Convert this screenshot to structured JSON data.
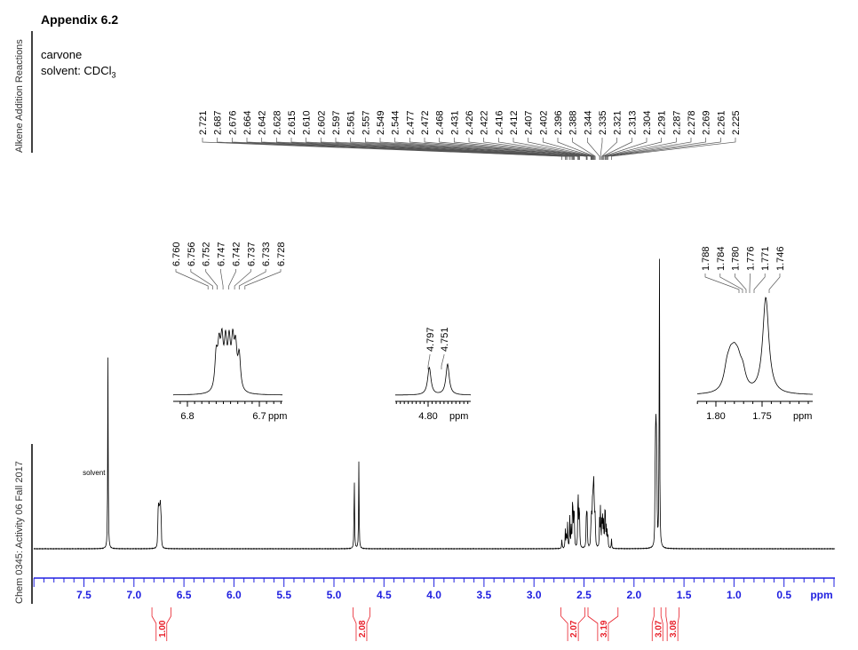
{
  "header": {
    "title": "Appendix 6.2",
    "compound": "carvone",
    "solvent_prefix": "solvent: CDCl",
    "solvent_subscript": "3",
    "side_label_top": "Alkene Addition Reactions",
    "side_label_bottom": "Chem 0345: Activity 06 Fall 2017"
  },
  "chart_data": {
    "type": "line",
    "title": "",
    "xlabel": "ppm",
    "xlim": [
      8.0,
      0.0
    ],
    "x_reversed": true,
    "x_ticks": [
      "7.5",
      "7.0",
      "6.5",
      "6.0",
      "5.5",
      "5.0",
      "4.5",
      "4.0",
      "3.5",
      "3.0",
      "2.5",
      "2.0",
      "1.5",
      "1.0",
      "0.5"
    ],
    "x_tick_values": [
      7.5,
      7.0,
      6.5,
      6.0,
      5.5,
      5.0,
      4.5,
      4.0,
      3.5,
      3.0,
      2.5,
      2.0,
      1.5,
      1.0,
      0.5
    ],
    "axis_color": "#2020e0",
    "integral_color": "#e8202a",
    "annotation": "solvent",
    "annotation_ppm": 7.26,
    "peaks": [
      {
        "ppm": 7.26,
        "intensity": 61
      },
      {
        "ppm": 6.76,
        "intensity": 7
      },
      {
        "ppm": 6.756,
        "intensity": 8
      },
      {
        "ppm": 6.752,
        "intensity": 9
      },
      {
        "ppm": 6.747,
        "intensity": 9
      },
      {
        "ppm": 6.742,
        "intensity": 9
      },
      {
        "ppm": 6.737,
        "intensity": 9
      },
      {
        "ppm": 6.733,
        "intensity": 8
      },
      {
        "ppm": 6.728,
        "intensity": 7
      },
      {
        "ppm": 4.797,
        "intensity": 25
      },
      {
        "ppm": 4.751,
        "intensity": 28
      },
      {
        "ppm": 2.721,
        "intensity": 3
      },
      {
        "ppm": 2.687,
        "intensity": 6
      },
      {
        "ppm": 2.676,
        "intensity": 5
      },
      {
        "ppm": 2.664,
        "intensity": 8
      },
      {
        "ppm": 2.642,
        "intensity": 10
      },
      {
        "ppm": 2.628,
        "intensity": 7
      },
      {
        "ppm": 2.615,
        "intensity": 12
      },
      {
        "ppm": 2.61,
        "intensity": 9
      },
      {
        "ppm": 2.602,
        "intensity": 8
      },
      {
        "ppm": 2.597,
        "intensity": 9
      },
      {
        "ppm": 2.561,
        "intensity": 11
      },
      {
        "ppm": 2.557,
        "intensity": 12
      },
      {
        "ppm": 2.549,
        "intensity": 9
      },
      {
        "ppm": 2.544,
        "intensity": 8
      },
      {
        "ppm": 2.477,
        "intensity": 8
      },
      {
        "ppm": 2.472,
        "intensity": 9
      },
      {
        "ppm": 2.468,
        "intensity": 7
      },
      {
        "ppm": 2.431,
        "intensity": 6
      },
      {
        "ppm": 2.426,
        "intensity": 7
      },
      {
        "ppm": 2.422,
        "intensity": 6
      },
      {
        "ppm": 2.416,
        "intensity": 9
      },
      {
        "ppm": 2.412,
        "intensity": 10
      },
      {
        "ppm": 2.407,
        "intensity": 12
      },
      {
        "ppm": 2.402,
        "intensity": 16
      },
      {
        "ppm": 2.396,
        "intensity": 12
      },
      {
        "ppm": 2.388,
        "intensity": 10
      },
      {
        "ppm": 2.344,
        "intensity": 9
      },
      {
        "ppm": 2.335,
        "intensity": 13
      },
      {
        "ppm": 2.321,
        "intensity": 10
      },
      {
        "ppm": 2.313,
        "intensity": 9
      },
      {
        "ppm": 2.304,
        "intensity": 8
      },
      {
        "ppm": 2.291,
        "intensity": 9
      },
      {
        "ppm": 2.287,
        "intensity": 8
      },
      {
        "ppm": 2.278,
        "intensity": 6
      },
      {
        "ppm": 2.269,
        "intensity": 5
      },
      {
        "ppm": 2.261,
        "intensity": 4
      },
      {
        "ppm": 2.225,
        "intensity": 3
      },
      {
        "ppm": 1.788,
        "intensity": 20
      },
      {
        "ppm": 1.784,
        "intensity": 23
      },
      {
        "ppm": 1.78,
        "intensity": 24
      },
      {
        "ppm": 1.776,
        "intensity": 22
      },
      {
        "ppm": 1.771,
        "intensity": 18
      },
      {
        "ppm": 1.746,
        "intensity": 100
      }
    ],
    "peak_label_groups": [
      {
        "labels": [
          "2.721",
          "2.687",
          "2.676",
          "2.664",
          "2.642",
          "2.628",
          "2.615",
          "2.610",
          "2.602",
          "2.597",
          "2.561",
          "2.557",
          "2.549",
          "2.544",
          "2.477",
          "2.472",
          "2.468",
          "2.431",
          "2.426",
          "2.422",
          "2.416",
          "2.412",
          "2.407",
          "2.402",
          "2.396",
          "2.388",
          "2.344",
          "2.335",
          "2.321",
          "2.313",
          "2.304",
          "2.291",
          "2.287",
          "2.278",
          "2.269",
          "2.261",
          "2.225"
        ]
      },
      {
        "labels": [
          "6.760",
          "6.756",
          "6.752",
          "6.747",
          "6.742",
          "6.737",
          "6.733",
          "6.728"
        ]
      },
      {
        "labels": [
          "4.797",
          "4.751"
        ]
      },
      {
        "labels": [
          "1.788",
          "1.784",
          "1.780",
          "1.776",
          "1.771",
          "1.746"
        ]
      }
    ],
    "insets": [
      {
        "xlim": [
          6.83,
          6.67
        ],
        "ticks": [
          "6.8",
          "6.7"
        ],
        "tick_values": [
          6.8,
          6.7
        ],
        "unit": "ppm"
      },
      {
        "xlim": [
          4.87,
          4.68
        ],
        "ticks": [
          "4.80"
        ],
        "tick_values": [
          4.8
        ],
        "unit": "ppm"
      },
      {
        "xlim": [
          1.82,
          1.72
        ],
        "ticks": [
          "1.80",
          "1.75"
        ],
        "tick_values": [
          1.8,
          1.75
        ],
        "unit": "ppm"
      }
    ],
    "integrals": [
      {
        "label": "1.00",
        "from": 6.82,
        "to": 6.63
      },
      {
        "label": "2.08",
        "from": 4.81,
        "to": 4.64
      },
      {
        "label": "2.07",
        "from": 2.73,
        "to": 2.49
      },
      {
        "label": "3.19",
        "from": 2.46,
        "to": 2.16
      },
      {
        "label": "3.07",
        "from": 1.8,
        "to": 1.73
      },
      {
        "label": "3.08",
        "from": 1.68,
        "to": 1.55
      }
    ]
  }
}
